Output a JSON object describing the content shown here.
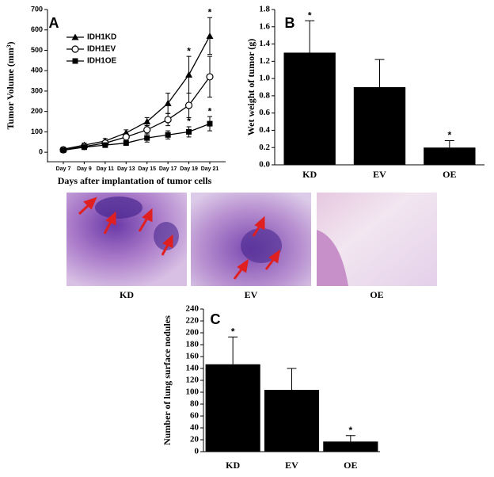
{
  "chart_data": [
    {
      "type": "line",
      "panel_label": "A",
      "ylabel": "Tumor Volume (mm³)",
      "xlabel": "Days after implantation of tumor cells",
      "categories": [
        "Day 7",
        "Day 9",
        "Day 11",
        "Day 13",
        "Day 15",
        "Day 17",
        "Day 19",
        "Day 21"
      ],
      "ylim": [
        -50,
        700
      ],
      "yticks": [
        0,
        100,
        200,
        300,
        400,
        500,
        600,
        700
      ],
      "series": [
        {
          "name": "IDH1KD",
          "color": "#000000",
          "marker": "triangle",
          "values": [
            15,
            35,
            55,
            95,
            150,
            240,
            380,
            570
          ],
          "errors": [
            10,
            10,
            12,
            15,
            20,
            50,
            90,
            90
          ],
          "annotations": [
            null,
            null,
            null,
            null,
            null,
            null,
            "*",
            "*"
          ]
        },
        {
          "name": "IDH1EV",
          "color": "#000000",
          "marker": "open-circle",
          "values": [
            12,
            28,
            45,
            75,
            110,
            160,
            230,
            370
          ],
          "errors": [
            8,
            8,
            10,
            12,
            20,
            30,
            60,
            100
          ],
          "annotations": [
            null,
            null,
            null,
            null,
            null,
            null,
            null,
            null
          ]
        },
        {
          "name": "IDH1OE",
          "color": "#000000",
          "marker": "square",
          "values": [
            10,
            25,
            35,
            45,
            70,
            85,
            100,
            140
          ],
          "errors": [
            8,
            8,
            8,
            10,
            20,
            20,
            25,
            35
          ],
          "annotations": [
            null,
            null,
            null,
            null,
            null,
            null,
            "*",
            "*"
          ]
        }
      ]
    },
    {
      "type": "bar",
      "panel_label": "B",
      "ylabel": "Wet weight of tumor (g)",
      "categories": [
        "KD",
        "EV",
        "OE"
      ],
      "values": [
        1.3,
        0.9,
        0.2
      ],
      "errors": [
        0.37,
        0.32,
        0.08
      ],
      "annotations": [
        "*",
        null,
        "*"
      ],
      "color": "#000000",
      "ylim": [
        0,
        1.8
      ],
      "yticks": [
        {
          "value": 0,
          "label": "0.0"
        },
        0.2,
        0.4,
        0.6,
        0.8,
        {
          "value": 1,
          "label": "1.0"
        },
        1.2,
        1.4,
        1.6,
        1.8
      ]
    },
    {
      "type": "bar",
      "panel_label": "C",
      "ylabel": "Number of lung surface nodules",
      "categories": [
        "KD",
        "EV",
        "OE"
      ],
      "values": [
        147,
        104,
        17
      ],
      "errors": [
        46,
        36,
        10
      ],
      "annotations": [
        "*",
        null,
        "*"
      ],
      "color": "#000000",
      "ylim": [
        0,
        240
      ],
      "yticks": [
        0,
        20,
        40,
        60,
        80,
        100,
        120,
        140,
        160,
        180,
        200,
        220,
        240
      ]
    }
  ],
  "histology": {
    "labels": [
      "KD",
      "EV",
      "OE"
    ]
  }
}
